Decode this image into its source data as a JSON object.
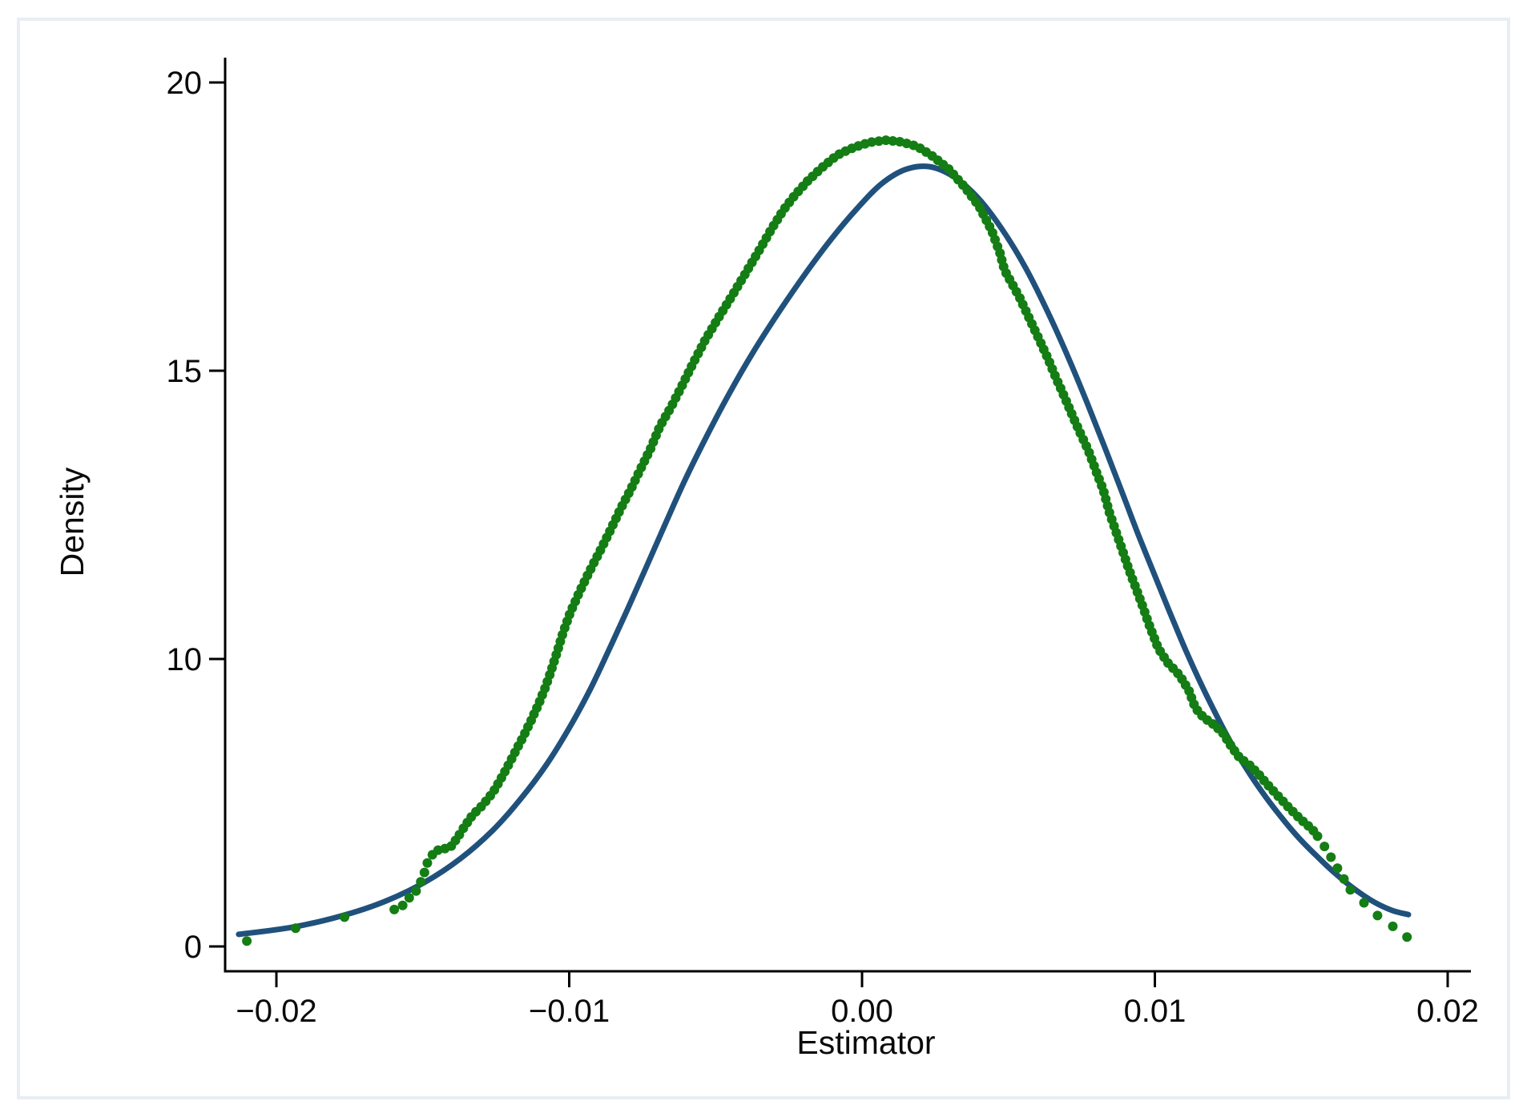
{
  "figure": {
    "background": "#ffffff",
    "frame_color": "#e8eef4"
  },
  "chart_data": {
    "type": "line",
    "title": "",
    "xlabel": "Estimator",
    "ylabel": "Density",
    "grid": false,
    "legend": "none",
    "x_range": [
      -0.0225,
      0.0209
    ],
    "y_tick_labels_bottom_to_top": [
      "0",
      "10",
      "15",
      "20"
    ],
    "x_ticks": [
      {
        "label": "−0.02",
        "value": -0.02
      },
      {
        "label": "−0.01",
        "value": -0.01
      },
      {
        "label": "0.00",
        "value": 0.0
      },
      {
        "label": "0.01",
        "value": 0.01
      },
      {
        "label": "0.02",
        "value": 0.02
      }
    ],
    "y_ticks": [
      {
        "label": "0",
        "value": 0
      },
      {
        "label": "10",
        "value": 10
      },
      {
        "label": "15",
        "value": 15
      },
      {
        "label": "20",
        "value": 20
      }
    ],
    "series": [
      {
        "name": "normal-density-curve",
        "type": "line",
        "color": "#20517c",
        "points": [
          [
            -0.02129,
            0.42
          ],
          [
            -0.01945,
            0.67
          ],
          [
            -0.01778,
            1.06
          ],
          [
            -0.01631,
            1.56
          ],
          [
            -0.01494,
            2.23
          ],
          [
            -0.01371,
            3.06
          ],
          [
            -0.01261,
            4.04
          ],
          [
            -0.01166,
            5.13
          ],
          [
            -0.01078,
            6.32
          ],
          [
            -0.01001,
            7.58
          ],
          [
            -0.0093,
            8.91
          ],
          [
            -0.00865,
            10.15
          ],
          [
            -0.00802,
            10.85
          ],
          [
            -0.00739,
            11.57
          ],
          [
            -0.00673,
            12.33
          ],
          [
            -0.00605,
            13.1
          ],
          [
            -0.00531,
            13.86
          ],
          [
            -0.00454,
            14.6
          ],
          [
            -0.00372,
            15.32
          ],
          [
            -0.00285,
            16.01
          ],
          [
            -0.00194,
            16.68
          ],
          [
            -0.00104,
            17.29
          ],
          [
            -0.00016,
            17.82
          ],
          [
            0.00066,
            18.24
          ],
          [
            0.00148,
            18.49
          ],
          [
            0.0023,
            18.54
          ],
          [
            0.00312,
            18.37
          ],
          [
            0.00394,
            18.01
          ],
          [
            0.00476,
            17.47
          ],
          [
            0.00558,
            16.79
          ],
          [
            0.00635,
            16.01
          ],
          [
            0.00706,
            15.21
          ],
          [
            0.00772,
            14.4
          ],
          [
            0.00832,
            13.63
          ],
          [
            0.00889,
            12.88
          ],
          [
            0.00944,
            12.15
          ],
          [
            0.00999,
            11.46
          ],
          [
            0.01051,
            10.81
          ],
          [
            0.01103,
            10.18
          ],
          [
            0.01155,
            9.19
          ],
          [
            0.01207,
            8.11
          ],
          [
            0.01259,
            7.1
          ],
          [
            0.01313,
            6.18
          ],
          [
            0.01368,
            5.35
          ],
          [
            0.01426,
            4.57
          ],
          [
            0.01486,
            3.84
          ],
          [
            0.01549,
            3.18
          ],
          [
            0.01614,
            2.56
          ],
          [
            0.0168,
            2.01
          ],
          [
            0.01746,
            1.56
          ],
          [
            0.01811,
            1.25
          ],
          [
            0.01866,
            1.11
          ]
        ]
      },
      {
        "name": "kernel-density-points",
        "type": "scatter",
        "color": "#147d14",
        "points": [
          [
            -0.02101,
            0.19
          ],
          [
            -0.01945,
            0.61
          ],
          [
            -0.01778,
            1.0
          ],
          [
            -0.01685,
            1.17
          ],
          [
            -0.01579,
            1.31
          ],
          [
            -0.01543,
            1.73
          ],
          [
            -0.01521,
            1.95
          ],
          [
            -0.01499,
            2.42
          ],
          [
            -0.0148,
            3.06
          ],
          [
            -0.01453,
            3.34
          ],
          [
            -0.01406,
            3.45
          ],
          [
            -0.01379,
            3.82
          ],
          [
            -0.01363,
            4.09
          ],
          [
            -0.0133,
            4.57
          ],
          [
            -0.01297,
            4.9
          ],
          [
            -0.01261,
            5.35
          ],
          [
            -0.01226,
            5.96
          ],
          [
            -0.01193,
            6.6
          ],
          [
            -0.0116,
            7.24
          ],
          [
            -0.0113,
            7.86
          ],
          [
            -0.01103,
            8.47
          ],
          [
            -0.01081,
            9.03
          ],
          [
            -0.01062,
            9.58
          ],
          [
            -0.01042,
            10.11
          ],
          [
            -0.01021,
            10.46
          ],
          [
            -0.00996,
            10.81
          ],
          [
            -0.00966,
            11.15
          ],
          [
            -0.00933,
            11.5
          ],
          [
            -0.00897,
            11.85
          ],
          [
            -0.00859,
            12.24
          ],
          [
            -0.00824,
            12.61
          ],
          [
            -0.00788,
            12.96
          ],
          [
            -0.00755,
            13.31
          ],
          [
            -0.00722,
            13.65
          ],
          [
            -0.0069,
            14.04
          ],
          [
            -0.00651,
            14.38
          ],
          [
            -0.00613,
            14.76
          ],
          [
            -0.00575,
            15.15
          ],
          [
            -0.00536,
            15.53
          ],
          [
            -0.00495,
            15.88
          ],
          [
            -0.00449,
            16.26
          ],
          [
            -0.00399,
            16.68
          ],
          [
            -0.0035,
            17.1
          ],
          [
            -0.00309,
            17.46
          ],
          [
            -0.00268,
            17.79
          ],
          [
            -0.00227,
            18.06
          ],
          [
            -0.00186,
            18.29
          ],
          [
            -0.0014,
            18.51
          ],
          [
            -0.00085,
            18.74
          ],
          [
            -0.0003,
            18.87
          ],
          [
            0.00025,
            18.96
          ],
          [
            0.00079,
            19.0
          ],
          [
            0.00134,
            18.97
          ],
          [
            0.00189,
            18.89
          ],
          [
            0.00244,
            18.71
          ],
          [
            0.00298,
            18.49
          ],
          [
            0.00353,
            18.17
          ],
          [
            0.004,
            17.85
          ],
          [
            0.00443,
            17.43
          ],
          [
            0.00471,
            17.04
          ],
          [
            0.00487,
            16.74
          ],
          [
            0.00509,
            16.54
          ],
          [
            0.00539,
            16.26
          ],
          [
            0.00572,
            15.9
          ],
          [
            0.00605,
            15.54
          ],
          [
            0.00635,
            15.21
          ],
          [
            0.00662,
            14.88
          ],
          [
            0.0069,
            14.56
          ],
          [
            0.00717,
            14.24
          ],
          [
            0.00744,
            13.93
          ],
          [
            0.00772,
            13.63
          ],
          [
            0.00799,
            13.26
          ],
          [
            0.00824,
            12.93
          ],
          [
            0.00845,
            12.54
          ],
          [
            0.00865,
            12.24
          ],
          [
            0.00887,
            11.92
          ],
          [
            0.00908,
            11.6
          ],
          [
            0.00933,
            11.26
          ],
          [
            0.00958,
            10.92
          ],
          [
            0.00985,
            10.53
          ],
          [
            0.01012,
            10.18
          ],
          [
            0.01045,
            9.86
          ],
          [
            0.01084,
            9.44
          ],
          [
            0.01116,
            8.91
          ],
          [
            0.01138,
            8.3
          ],
          [
            0.01166,
            7.97
          ],
          [
            0.01198,
            7.74
          ],
          [
            0.01231,
            7.44
          ],
          [
            0.01261,
            6.96
          ],
          [
            0.01289,
            6.57
          ],
          [
            0.01324,
            6.3
          ],
          [
            0.01357,
            5.96
          ],
          [
            0.0139,
            5.57
          ],
          [
            0.01423,
            5.21
          ],
          [
            0.01456,
            4.85
          ],
          [
            0.01494,
            4.46
          ],
          [
            0.01538,
            4.07
          ],
          [
            0.01571,
            3.62
          ],
          [
            0.01604,
            3.06
          ],
          [
            0.01636,
            2.51
          ],
          [
            0.01669,
            1.95
          ],
          [
            0.01716,
            1.5
          ],
          [
            0.01768,
            1.0
          ],
          [
            0.01817,
            0.67
          ],
          [
            0.01861,
            0.33
          ]
        ]
      }
    ]
  }
}
